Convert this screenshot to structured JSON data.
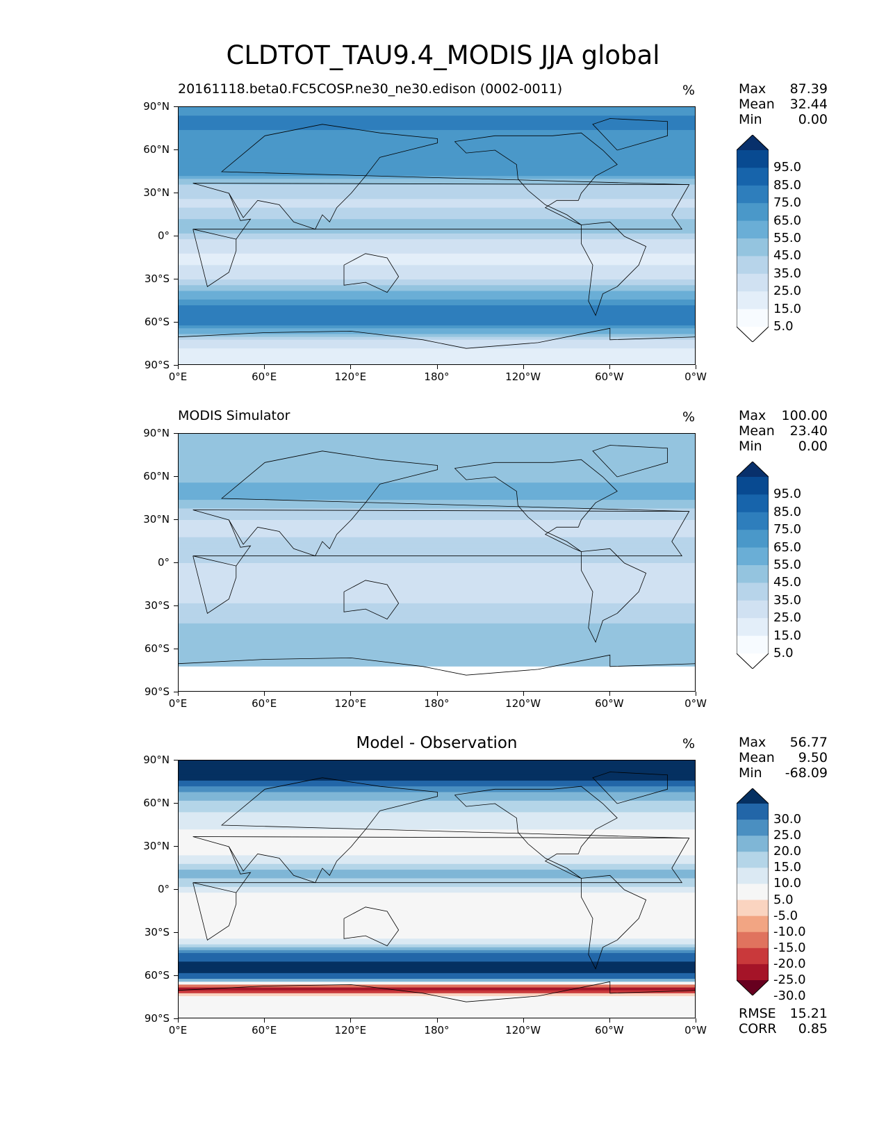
{
  "title": "CLDTOT_TAU9.4_MODIS JJA global",
  "lat_ticks": [
    "90°N",
    "60°N",
    "30°N",
    "0°",
    "30°S",
    "60°S",
    "90°S"
  ],
  "lon_ticks": [
    "0°E",
    "60°E",
    "120°E",
    "180°",
    "120°W",
    "60°W",
    "0°W"
  ],
  "chart_data": [
    {
      "type": "heatmap",
      "panel": "model",
      "title": "20161118.beta0.FC5COSP.ne30_ne30.edison (0002-0011)",
      "units": "%",
      "stats": {
        "Max": "87.39",
        "Mean": "32.44",
        "Min": "0.00"
      },
      "colorbar_ticks": [
        "95.0",
        "85.0",
        "75.0",
        "65.0",
        "55.0",
        "45.0",
        "35.0",
        "25.0",
        "15.0",
        "5.0"
      ],
      "colormap": [
        "#ffffff",
        "#f7fbff",
        "#e3eef9",
        "#d0e1f2",
        "#b7d4ea",
        "#94c4df",
        "#6aaed6",
        "#4a98c9",
        "#2e7ebc",
        "#1764ab",
        "#084a91",
        "#08306b"
      ],
      "zonal_profile": {
        "lat": [
          90,
          78,
          65,
          55,
          45,
          35,
          22,
          12,
          5,
          -5,
          -15,
          -28,
          -42,
          -50,
          -58,
          -66,
          -72,
          -80,
          -90
        ],
        "value": [
          60,
          70,
          55,
          58,
          62,
          30,
          22,
          35,
          40,
          20,
          12,
          20,
          52,
          72,
          75,
          50,
          25,
          12,
          8
        ]
      }
    },
    {
      "type": "heatmap",
      "panel": "observation",
      "title": "MODIS Simulator",
      "units": "%",
      "stats": {
        "Max": "100.00",
        "Mean": "23.40",
        "Min": "0.00"
      },
      "colorbar_ticks": [
        "95.0",
        "85.0",
        "75.0",
        "65.0",
        "55.0",
        "45.0",
        "35.0",
        "25.0",
        "15.0",
        "5.0"
      ],
      "colormap": [
        "#ffffff",
        "#f7fbff",
        "#e3eef9",
        "#d0e1f2",
        "#b7d4ea",
        "#94c4df",
        "#6aaed6",
        "#4a98c9",
        "#2e7ebc",
        "#1764ab",
        "#084a91",
        "#08306b"
      ],
      "zonal_profile": {
        "lat": [
          90,
          78,
          65,
          55,
          45,
          35,
          22,
          12,
          5,
          -5,
          -15,
          -28,
          -42,
          -50,
          -58,
          -66,
          -71,
          -72,
          -90
        ],
        "value": [
          45,
          42,
          40,
          45,
          48,
          28,
          20,
          30,
          28,
          22,
          18,
          25,
          35,
          40,
          40,
          38,
          35,
          0,
          0
        ]
      }
    },
    {
      "type": "heatmap",
      "panel": "difference",
      "title": "Model - Observation",
      "units": "%",
      "stats": {
        "Max": "56.77",
        "Mean": "9.50",
        "Min": "-68.09"
      },
      "error_stats": {
        "RMSE": "15.21",
        "CORR": "0.85"
      },
      "colorbar_ticks": [
        "30.0",
        "25.0",
        "20.0",
        "15.0",
        "10.0",
        "5.0",
        "-5.0",
        "-10.0",
        "-15.0",
        "-20.0",
        "-25.0",
        "-30.0"
      ],
      "colormap": [
        "#67001f",
        "#a51428",
        "#c9393b",
        "#e0735e",
        "#f2a583",
        "#fad4c0",
        "#f6f6f6",
        "#dbe9f3",
        "#b4d5e8",
        "#7fb6d6",
        "#4a8fc1",
        "#2266a8",
        "#053061"
      ],
      "zonal_profile": {
        "lat": [
          90,
          80,
          70,
          60,
          50,
          40,
          25,
          10,
          3,
          -5,
          -20,
          -35,
          -45,
          -55,
          -62,
          -66,
          -70,
          -74,
          -80,
          -90
        ],
        "value": [
          40,
          35,
          22,
          12,
          8,
          4,
          3,
          18,
          10,
          2,
          3,
          5,
          28,
          32,
          25,
          -12,
          -30,
          0,
          0,
          0
        ]
      }
    }
  ]
}
